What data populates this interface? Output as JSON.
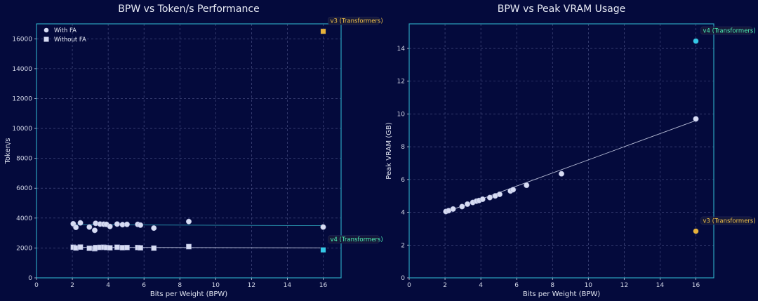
{
  "colors": {
    "background": "#040a3c",
    "frame": "#2fb0c9",
    "point": "#d7dcf3",
    "v3": "#e7b23a",
    "v4_box": "#33c8e6",
    "v4_text": "#4df0b4",
    "v3_text": "#f1c14a"
  },
  "chart_data": [
    {
      "type": "scatter",
      "title": "BPW vs Token/s Performance",
      "xlabel": "Bits per Weight (BPW)",
      "ylabel": "Token/s",
      "xlim": [
        0,
        17
      ],
      "ylim": [
        0,
        17000
      ],
      "xticks": [
        0,
        2,
        4,
        6,
        8,
        10,
        12,
        14,
        16
      ],
      "yticks": [
        0,
        2000,
        4000,
        6000,
        8000,
        10000,
        12000,
        14000,
        16000
      ],
      "grid": true,
      "legend": {
        "position": "top-left",
        "entries": [
          "With FA",
          "Without FA"
        ]
      },
      "series": [
        {
          "name": "With FA",
          "marker": "circle",
          "x": [
            2.05,
            2.2,
            2.45,
            2.95,
            3.25,
            3.3,
            3.55,
            3.75,
            3.9,
            4.1,
            4.5,
            4.8,
            5.05,
            5.65,
            5.8,
            6.55,
            8.5,
            16.0
          ],
          "y": [
            3620,
            3380,
            3680,
            3400,
            3180,
            3650,
            3600,
            3590,
            3580,
            3440,
            3600,
            3560,
            3580,
            3580,
            3530,
            3330,
            3770,
            3400
          ]
        },
        {
          "name": "Without FA",
          "marker": "square",
          "x": [
            2.05,
            2.2,
            2.45,
            2.95,
            3.25,
            3.3,
            3.55,
            3.75,
            3.9,
            4.1,
            4.5,
            4.8,
            5.05,
            5.65,
            5.8,
            6.55,
            8.5
          ],
          "y": [
            2050,
            2000,
            2060,
            1980,
            1950,
            2030,
            2040,
            2050,
            2030,
            2010,
            2050,
            2020,
            2030,
            2030,
            2010,
            1990,
            2090
          ]
        }
      ],
      "fit_lines": [
        {
          "series": "With FA",
          "x": [
            2.0,
            16.0
          ],
          "y": [
            3555,
            3495
          ]
        },
        {
          "series": "Without FA",
          "x": [
            2.0,
            16.0
          ],
          "y": [
            2040,
            2010
          ]
        }
      ],
      "highlights": [
        {
          "label": "v3 (Transformers)",
          "x": 16.0,
          "y": 16500,
          "marker": "square",
          "color": "#e7b23a"
        },
        {
          "label": "v4 (Transformers)",
          "x": 16.0,
          "y": 1870,
          "marker": "square",
          "color": "#33c8e6"
        }
      ]
    },
    {
      "type": "scatter",
      "title": "BPW vs Peak VRAM Usage",
      "xlabel": "Bits per Weight (BPW)",
      "ylabel": "Peak VRAM (GB)",
      "xlim": [
        0,
        17
      ],
      "ylim": [
        0,
        15.5
      ],
      "xticks": [
        0,
        2,
        4,
        6,
        8,
        10,
        12,
        14,
        16
      ],
      "yticks": [
        0,
        2,
        4,
        6,
        8,
        10,
        12,
        14
      ],
      "grid": true,
      "series": [
        {
          "name": "",
          "marker": "circle",
          "x": [
            2.05,
            2.2,
            2.45,
            2.95,
            3.25,
            3.55,
            3.75,
            3.9,
            4.1,
            4.5,
            4.8,
            5.05,
            5.65,
            5.8,
            6.55,
            8.5,
            16.0
          ],
          "y": [
            4.05,
            4.1,
            4.2,
            4.35,
            4.5,
            4.6,
            4.68,
            4.72,
            4.8,
            4.9,
            5.0,
            5.1,
            5.3,
            5.38,
            5.65,
            6.35,
            9.7
          ]
        }
      ],
      "fit_lines": [
        {
          "x": [
            2.0,
            16.0
          ],
          "y": [
            4.0,
            9.6
          ]
        }
      ],
      "highlights": [
        {
          "label": "v4 (Transformers)",
          "x": 16.0,
          "y": 14.45,
          "marker": "circle",
          "color": "#33c8e6"
        },
        {
          "label": "v3 (Transformers)",
          "x": 16.0,
          "y": 2.85,
          "marker": "circle",
          "color": "#e7b23a"
        }
      ]
    }
  ]
}
